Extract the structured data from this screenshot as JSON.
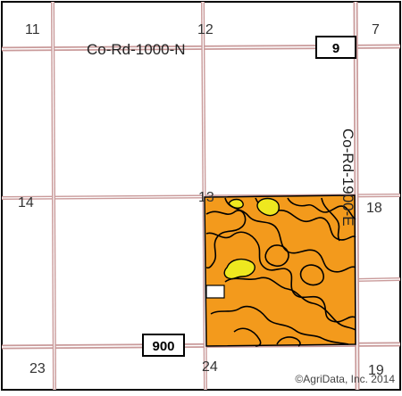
{
  "map": {
    "sections": {
      "s11": "11",
      "s12": "12",
      "s7": "7",
      "s14": "14",
      "s13": "13",
      "s18": "18",
      "s23": "23",
      "s24": "24",
      "s19": "19"
    },
    "roads": {
      "north_road_label": "Co-Rd-1000-N",
      "east_road_label": "Co-Rd-1900-E",
      "shield_9": "9",
      "shield_900": "900"
    },
    "credit": "©AgriData, Inc. 2014",
    "colors": {
      "field": "#F39A1C",
      "highlight": "#EEE81F",
      "road": "#C99A9A",
      "outline": "#000000"
    }
  }
}
